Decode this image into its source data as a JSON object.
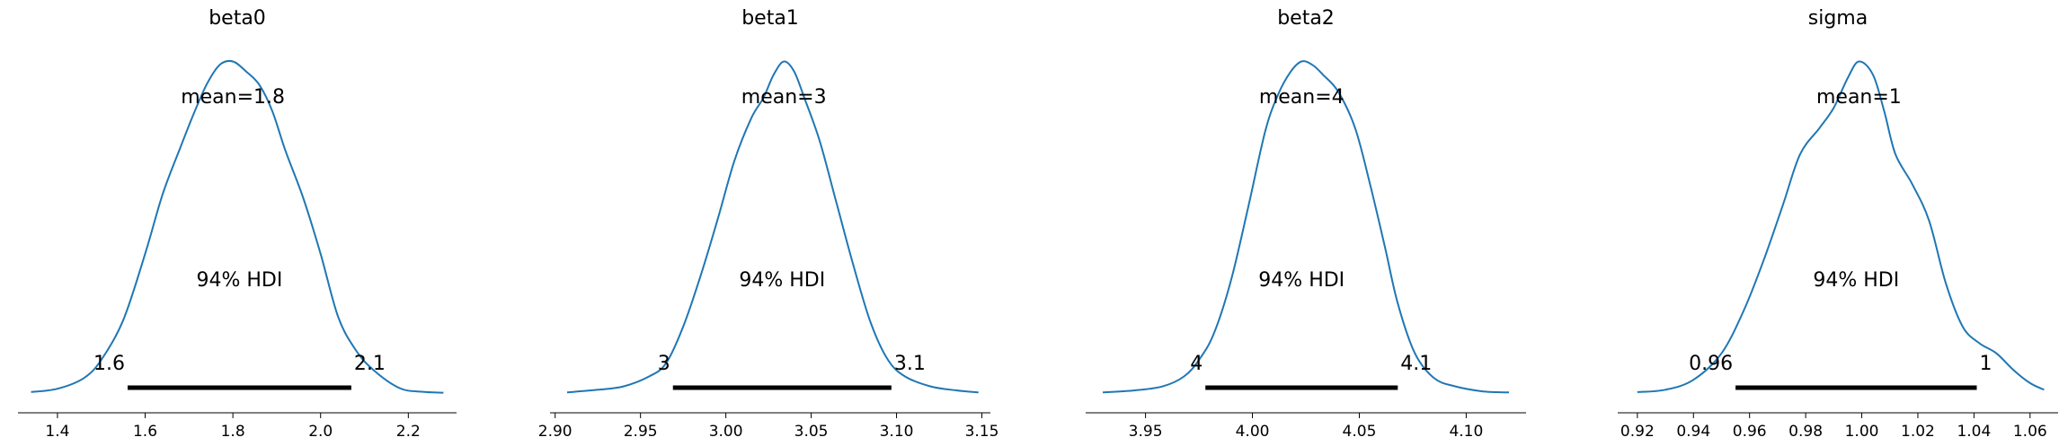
{
  "colors": {
    "kde": "#1f77b4",
    "hdi": "#000000",
    "axis": "#000000"
  },
  "chart_data": [
    {
      "type": "line",
      "title": "beta0",
      "mean_label": "mean=1.8",
      "hdi_label": "94% HDI",
      "hdi": [
        1.56,
        2.07
      ],
      "hdi_low_label": "1.6",
      "hdi_high_label": "2.1",
      "xlim": [
        1.31,
        2.31
      ],
      "ylim": [
        0,
        1.05
      ],
      "xticks": [
        1.4,
        1.6,
        1.8,
        2.0,
        2.2
      ],
      "xtick_labels": [
        "1.4",
        "1.6",
        "1.8",
        "2.0",
        "2.2"
      ],
      "x": [
        1.34,
        1.4,
        1.46,
        1.5,
        1.55,
        1.6,
        1.64,
        1.68,
        1.71,
        1.74,
        1.77,
        1.8,
        1.83,
        1.86,
        1.89,
        1.92,
        1.96,
        2.0,
        2.04,
        2.08,
        2.12,
        2.18,
        2.23,
        2.28
      ],
      "y": [
        0.003,
        0.013,
        0.045,
        0.1,
        0.22,
        0.42,
        0.6,
        0.74,
        0.84,
        0.93,
        0.99,
        1.0,
        0.97,
        0.93,
        0.85,
        0.73,
        0.59,
        0.42,
        0.23,
        0.13,
        0.07,
        0.015,
        0.004,
        0.001
      ]
    },
    {
      "type": "line",
      "title": "beta1",
      "mean_label": "mean=3",
      "hdi_label": "94% HDI",
      "hdi": [
        2.969,
        3.097
      ],
      "hdi_low_label": "3",
      "hdi_high_label": "3.1",
      "xlim": [
        2.897,
        3.155
      ],
      "ylim": [
        0,
        1.05
      ],
      "xticks": [
        2.9,
        2.95,
        3.0,
        3.05,
        3.1,
        3.15
      ],
      "xtick_labels": [
        "2.90",
        "2.95",
        "3.00",
        "3.05",
        "3.10",
        "3.15"
      ],
      "x": [
        2.907,
        2.925,
        2.94,
        2.955,
        2.965,
        2.975,
        2.985,
        2.995,
        3.005,
        3.015,
        3.022,
        3.028,
        3.034,
        3.04,
        3.046,
        3.055,
        3.065,
        3.075,
        3.085,
        3.095,
        3.105,
        3.12,
        3.135,
        3.148
      ],
      "y": [
        0.002,
        0.01,
        0.02,
        0.05,
        0.09,
        0.2,
        0.35,
        0.52,
        0.7,
        0.83,
        0.89,
        0.96,
        1.0,
        0.97,
        0.89,
        0.76,
        0.57,
        0.38,
        0.21,
        0.1,
        0.05,
        0.02,
        0.008,
        0.002
      ]
    },
    {
      "type": "line",
      "title": "beta2",
      "mean_label": "mean=4",
      "hdi_label": "94% HDI",
      "hdi": [
        3.978,
        4.068
      ],
      "hdi_low_label": "4",
      "hdi_high_label": "4.1",
      "xlim": [
        3.922,
        4.128
      ],
      "ylim": [
        0,
        1.05
      ],
      "xticks": [
        3.95,
        4.0,
        4.05,
        4.1
      ],
      "xtick_labels": [
        "3.95",
        "4.00",
        "4.05",
        "4.10"
      ],
      "x": [
        3.93,
        3.945,
        3.958,
        3.968,
        3.975,
        3.982,
        3.99,
        3.998,
        4.006,
        4.012,
        4.018,
        4.023,
        4.028,
        4.033,
        4.04,
        4.048,
        4.055,
        4.062,
        4.068,
        4.076,
        4.085,
        4.095,
        4.108,
        4.12
      ],
      "y": [
        0.002,
        0.008,
        0.02,
        0.05,
        0.1,
        0.18,
        0.34,
        0.56,
        0.79,
        0.9,
        0.97,
        1.0,
        0.99,
        0.96,
        0.91,
        0.8,
        0.63,
        0.44,
        0.27,
        0.12,
        0.045,
        0.02,
        0.005,
        0.002
      ]
    },
    {
      "type": "line",
      "title": "sigma",
      "mean_label": "mean=1",
      "hdi_label": "94% HDI",
      "hdi": [
        0.955,
        1.041
      ],
      "hdi_low_label": "0.96",
      "hdi_high_label": "1",
      "xlim": [
        0.913,
        1.07
      ],
      "ylim": [
        0,
        1.05
      ],
      "xticks": [
        0.92,
        0.94,
        0.96,
        0.98,
        1.0,
        1.02,
        1.04,
        1.06
      ],
      "xtick_labels": [
        "0.92",
        "0.94",
        "0.96",
        "0.98",
        "1.00",
        "1.02",
        "1.04",
        "1.06"
      ],
      "x": [
        0.92,
        0.93,
        0.94,
        0.95,
        0.958,
        0.965,
        0.972,
        0.978,
        0.985,
        0.99,
        0.995,
        0.999,
        1.004,
        1.008,
        1.012,
        1.018,
        1.024,
        1.03,
        1.036,
        1.042,
        1.048,
        1.054,
        1.06,
        1.065
      ],
      "y": [
        0.003,
        0.01,
        0.04,
        0.12,
        0.25,
        0.4,
        0.57,
        0.72,
        0.8,
        0.86,
        0.95,
        1.0,
        0.96,
        0.85,
        0.72,
        0.63,
        0.52,
        0.33,
        0.2,
        0.15,
        0.12,
        0.07,
        0.03,
        0.01
      ]
    }
  ]
}
